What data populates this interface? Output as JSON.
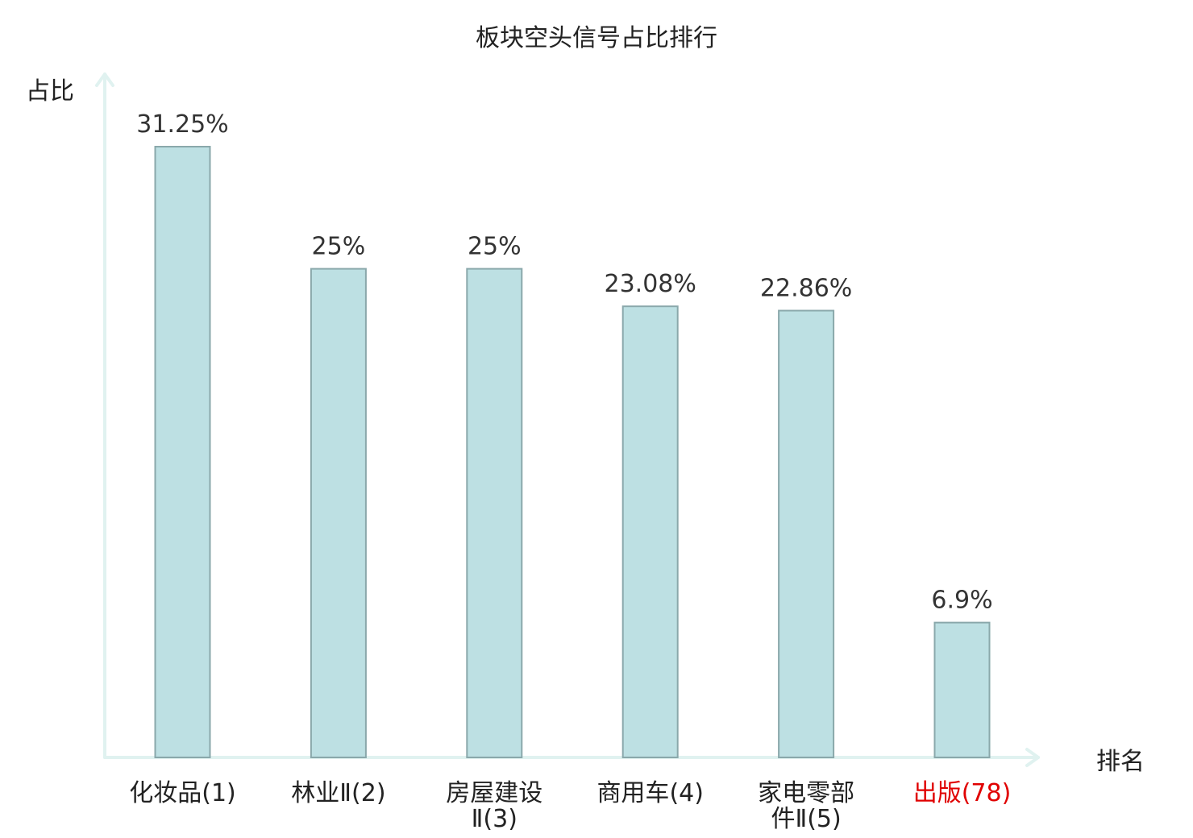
{
  "chart_data": {
    "type": "bar",
    "title": "板块空头信号占比排行",
    "ylabel": "占比",
    "xlabel": "排名",
    "categories": [
      {
        "main": "化妆品",
        "rank": "(1)"
      },
      {
        "main": "林业Ⅱ",
        "rank": "(2)"
      },
      {
        "main": "房屋建设",
        "rank": "Ⅱ(3)"
      },
      {
        "main": "商用车",
        "rank": "(4)"
      },
      {
        "main": "家电零部",
        "rank": "件Ⅱ(5)"
      },
      {
        "main": "出版",
        "rank": "(78)",
        "highlight": true
      }
    ],
    "values": [
      31.25,
      25,
      25,
      23.08,
      22.86,
      6.9
    ],
    "value_labels": [
      "31.25%",
      "25%",
      "25%",
      "23.08%",
      "22.86%",
      "6.9%"
    ],
    "ylim": [
      0,
      31.25
    ],
    "grid": false,
    "legend": "none"
  },
  "colors": {
    "bar_fill": "#bde0e3",
    "bar_stroke": "#8aa8ab",
    "axis": "#e0f2f0",
    "text": "#222222",
    "value_text": "#333333",
    "highlight_text": "#e00000"
  }
}
